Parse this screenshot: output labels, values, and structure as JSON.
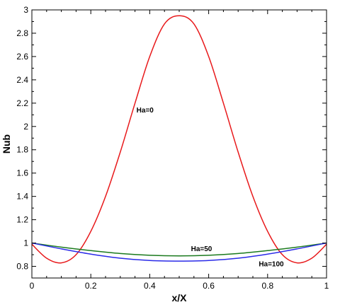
{
  "chart_data": {
    "type": "line",
    "title": "",
    "xlabel": "x/X",
    "ylabel": "Nub",
    "xlim": [
      0,
      1
    ],
    "ylim": [
      0.7,
      3
    ],
    "xticks": [
      "0",
      "0.2",
      "0.4",
      "0.6",
      "0.8",
      "1"
    ],
    "yticks": [
      "0.8",
      "1",
      "1.2",
      "1.4",
      "1.6",
      "1.8",
      "2",
      "2.2",
      "2.4",
      "2.6",
      "2.8",
      "3"
    ],
    "grid": false,
    "series": [
      {
        "name": "Ha=0",
        "color": "#e8191b",
        "x": [
          0,
          0.05,
          0.1,
          0.15,
          0.2,
          0.25,
          0.3,
          0.35,
          0.4,
          0.45,
          0.5,
          0.55,
          0.6,
          0.65,
          0.7,
          0.75,
          0.8,
          0.85,
          0.9,
          0.95,
          1
        ],
        "y": [
          0.99,
          0.87,
          0.83,
          0.9,
          1.1,
          1.4,
          1.78,
          2.2,
          2.6,
          2.88,
          2.95,
          2.88,
          2.6,
          2.2,
          1.78,
          1.4,
          1.1,
          0.9,
          0.83,
          0.87,
          0.99
        ]
      },
      {
        "name": "Ha=50",
        "color": "#1b7a1e",
        "x": [
          0,
          0.1,
          0.2,
          0.3,
          0.4,
          0.5,
          0.6,
          0.7,
          0.8,
          0.9,
          1
        ],
        "y": [
          1.0,
          0.965,
          0.935,
          0.91,
          0.895,
          0.89,
          0.895,
          0.91,
          0.935,
          0.965,
          1.0
        ]
      },
      {
        "name": "Ha=100",
        "color": "#2a2ae8",
        "x": [
          0,
          0.1,
          0.2,
          0.3,
          0.4,
          0.5,
          0.6,
          0.7,
          0.8,
          0.9,
          1
        ],
        "y": [
          1.0,
          0.95,
          0.905,
          0.87,
          0.85,
          0.845,
          0.85,
          0.87,
          0.905,
          0.95,
          1.0
        ]
      }
    ],
    "annotations": [
      {
        "text": "Ha=0",
        "x": 0.355,
        "y": 2.12
      },
      {
        "text": "Ha=50",
        "x": 0.54,
        "y": 0.93
      },
      {
        "text": "Ha=100",
        "x": 0.77,
        "y": 0.8
      }
    ]
  }
}
